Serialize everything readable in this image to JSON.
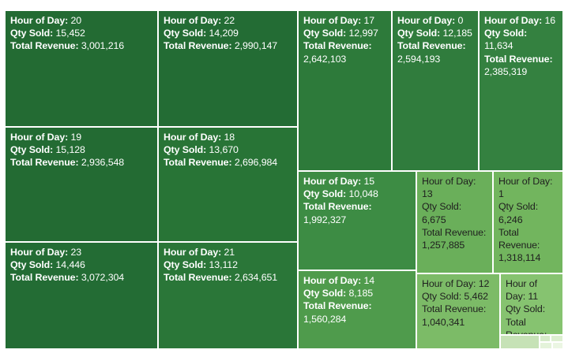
{
  "chart_data": {
    "type": "treemap",
    "field_labels": {
      "hour": "Hour of Day",
      "qty": "Qty Sold",
      "revenue": "Total Revenue"
    },
    "items": [
      {
        "hour": "20",
        "qty": "15,452",
        "revenue": "3,001,216",
        "color": "#236b33"
      },
      {
        "hour": "22",
        "qty": "14,209",
        "revenue": "2,990,147",
        "color": "#236c34"
      },
      {
        "hour": "17",
        "qty": "12,997",
        "revenue": "2,642,103",
        "color": "#2d7a3a"
      },
      {
        "hour": "0",
        "qty": "12,185",
        "revenue": "2,594,193",
        "color": "#307c3d"
      },
      {
        "hour": "16",
        "qty": "11,634",
        "revenue": "2,385,319",
        "color": "#348140"
      },
      {
        "hour": "19",
        "qty": "15,128",
        "revenue": "2,936,548",
        "color": "#236b33"
      },
      {
        "hour": "18",
        "qty": "13,670",
        "revenue": "2,696,984",
        "color": "#287436"
      },
      {
        "hour": "15",
        "qty": "10,048",
        "revenue": "1,992,327",
        "color": "#3d8c44"
      },
      {
        "hour": "13",
        "qty": "6,675",
        "revenue": "1,257,885",
        "color": "#6aaf5a"
      },
      {
        "hour": "1",
        "qty": "6,246",
        "revenue": "1,318,114",
        "color": "#72b55e"
      },
      {
        "hour": "23",
        "qty": "14,446",
        "revenue": "3,072,304",
        "color": "#236c34"
      },
      {
        "hour": "21",
        "qty": "13,112",
        "revenue": "2,634,651",
        "color": "#2a7638"
      },
      {
        "hour": "14",
        "qty": "8,185",
        "revenue": "1,560,284",
        "color": "#4f9b4c"
      },
      {
        "hour": "12",
        "qty": "5,462",
        "revenue": "1,040,341",
        "color": "#7cbb67"
      },
      {
        "hour": "11",
        "qty": "",
        "revenue": "",
        "color": "#86c370"
      }
    ],
    "minor_tile_colors": [
      "#c6e2b6",
      "#d6ebc9",
      "#dcefd0",
      "#e4f3da",
      "#ebf6e3"
    ]
  }
}
